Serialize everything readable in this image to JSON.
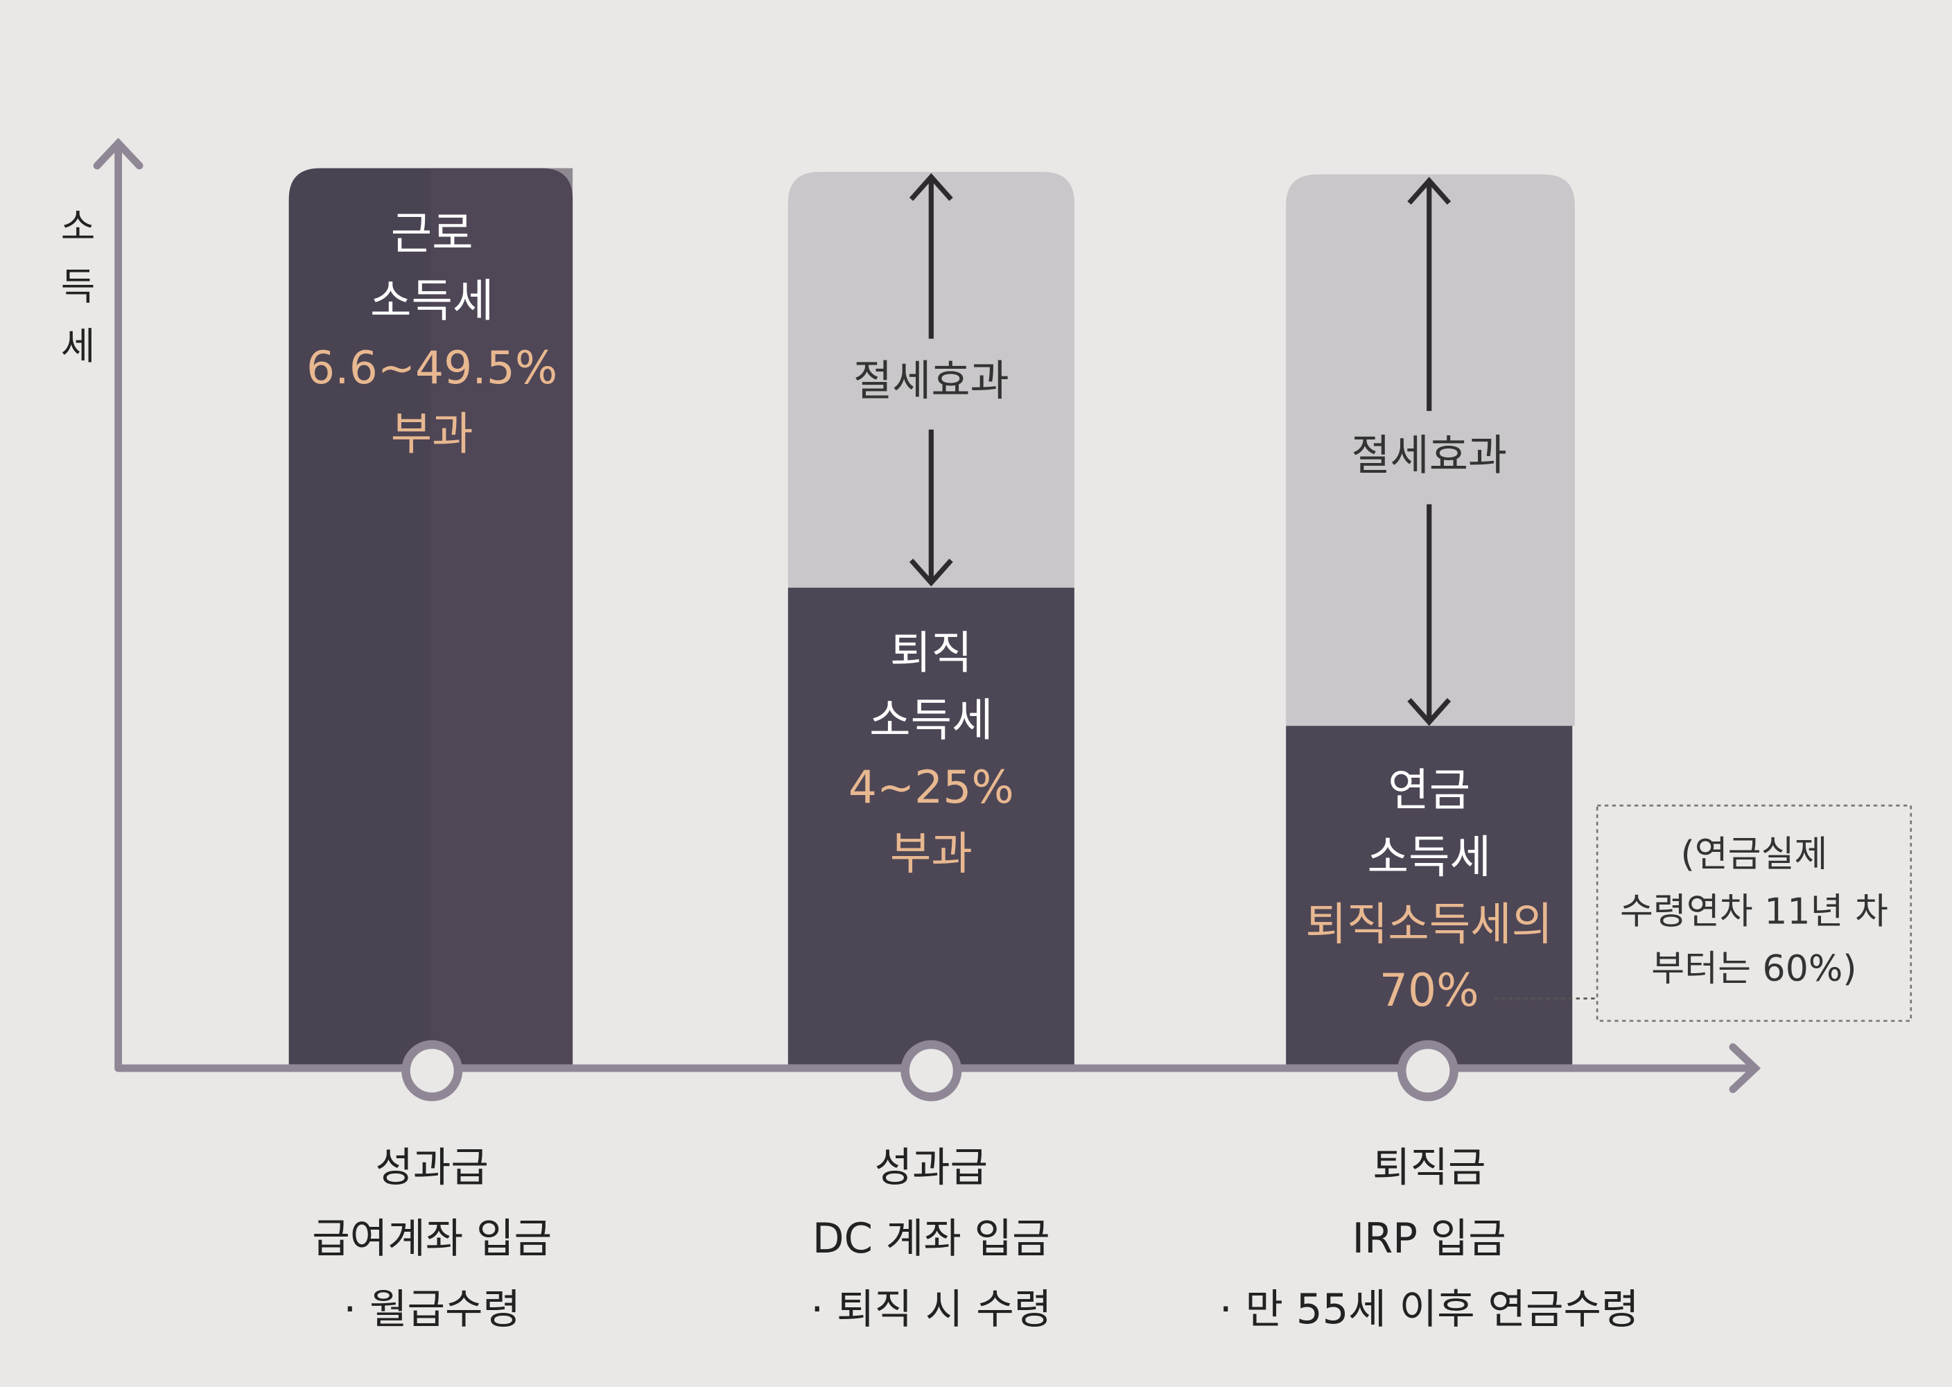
{
  "y_axis_label": "소득세",
  "columns": [
    {
      "tax_lines": [
        "근로",
        "소득세"
      ],
      "rate_lines": [
        "6.6~49.5%",
        "부과"
      ],
      "caption_lines": [
        "성과급",
        "급여계좌 입금",
        "· 월급수령"
      ]
    },
    {
      "saving": "절세효과",
      "tax_lines": [
        "퇴직",
        "소득세"
      ],
      "rate_lines": [
        "4~25%",
        "부과"
      ],
      "caption_lines": [
        "성과급",
        "DC 계좌 입금",
        "· 퇴직 시 수령"
      ]
    },
    {
      "saving": "절세효과",
      "tax_lines": [
        "연금",
        "소득세"
      ],
      "rate_lines": [
        "퇴직소득세의",
        "70%"
      ],
      "caption_lines": [
        "퇴직금",
        "IRP 입금",
        "· 만 55세 이후 연금수령"
      ]
    }
  ],
  "note": [
    "(연금실제",
    "수령연차 11년 차",
    "부터는 60%)"
  ]
}
